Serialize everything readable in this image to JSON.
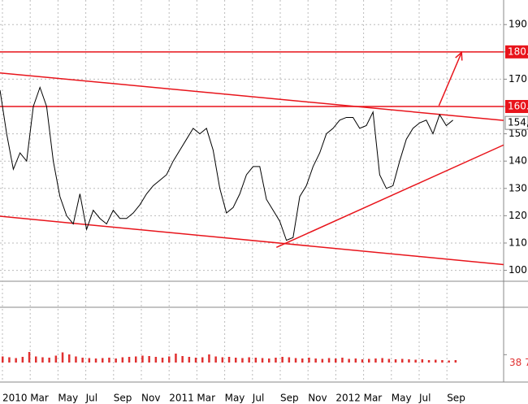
{
  "chart_data": [
    {
      "type": "line",
      "series": [
        {
          "color": "#000000",
          "values": [
            166,
            150,
            137,
            143,
            140,
            160,
            167,
            160,
            140,
            127,
            120,
            117,
            128,
            115,
            122,
            119,
            117,
            122,
            119,
            119,
            121,
            124,
            128,
            131,
            133,
            135,
            140,
            144,
            148,
            152,
            150,
            152,
            144,
            130,
            121,
            123,
            128,
            135,
            138,
            138,
            126,
            122,
            118,
            111,
            112,
            127,
            131,
            138,
            143,
            150,
            152,
            155,
            156,
            156,
            152,
            153,
            158,
            135,
            130,
            131,
            140,
            148,
            152,
            154,
            155,
            150,
            157,
            153,
            155
          ]
        }
      ],
      "ylim": [
        96,
        199
      ],
      "yticks": [
        100,
        110,
        120,
        130,
        140,
        150,
        160,
        170,
        180,
        190
      ],
      "grid": true,
      "lines_color": "#e8141b",
      "lines": [
        {
          "x": [
            0,
            75.6
          ],
          "values": [
            172.3,
            154.9
          ]
        },
        {
          "x": [
            0,
            75.6
          ],
          "values": [
            119.8,
            102.1
          ]
        },
        {
          "x": [
            41.5,
            75.6
          ],
          "values": [
            108.4,
            145.9
          ]
        },
        {
          "x": [
            65.9,
            69.3
          ],
          "values": [
            160.3,
            179.8
          ],
          "arrow": true
        }
      ],
      "levels": [
        {
          "value": 180,
          "label": "180."
        },
        {
          "value": 160,
          "label": "160."
        }
      ],
      "last_price": {
        "value": 154,
        "label": "154,"
      }
    },
    {
      "type": "bar",
      "color": "#e03030",
      "values": [
        30000,
        26000,
        22000,
        28000,
        52000,
        30000,
        26000,
        24000,
        34000,
        50000,
        40000,
        30000,
        24000,
        22000,
        20000,
        22000,
        24000,
        20000,
        26000,
        28000,
        30000,
        34000,
        32000,
        28000,
        24000,
        30000,
        44000,
        32000,
        28000,
        24000,
        26000,
        40000,
        30000,
        26000,
        28000,
        24000,
        22000,
        26000,
        24000,
        22000,
        20000,
        24000,
        28000,
        26000,
        22000,
        20000,
        24000,
        20000,
        18000,
        22000,
        20000,
        24000,
        18000,
        20000,
        16000,
        18000,
        20000,
        22000,
        18000,
        16000,
        18000,
        16000,
        14000,
        16000,
        12000,
        14000,
        12000,
        10000,
        12000
      ],
      "ylim": [
        0,
        300000
      ],
      "yticks": [
        {
          "value": 38700,
          "label": "38 7"
        }
      ],
      "x_labels": [
        "2010",
        "Mar",
        "May",
        "Jul",
        "Sep",
        "Nov",
        "2011",
        "Mar",
        "May",
        "Jul",
        "Sep",
        "Nov",
        "2012",
        "Mar",
        "May",
        "Jul",
        "Sep"
      ]
    }
  ]
}
